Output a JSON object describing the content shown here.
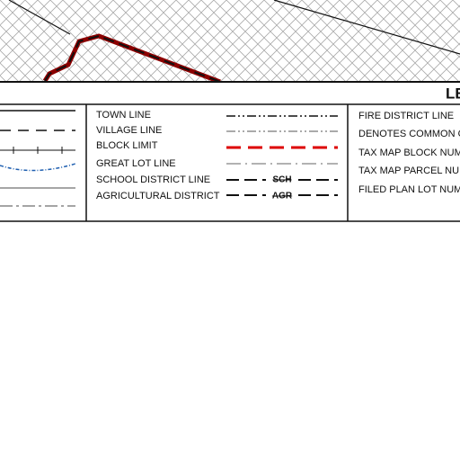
{
  "header": {
    "title": "LE"
  },
  "legend": {
    "middle": [
      {
        "label": "TOWN LINE"
      },
      {
        "label": "VILLAGE LINE"
      },
      {
        "label": "BLOCK LIMIT"
      },
      {
        "label": "GREAT LOT LINE"
      },
      {
        "label": "SCHOOL DISTRICT LINE",
        "symbol": "SCH"
      },
      {
        "label": "AGRICULTURAL DISTRICT",
        "symbol": "AGR"
      }
    ],
    "right": [
      {
        "label": "FIRE DISTRICT LINE"
      },
      {
        "label": "DENOTES COMMON O"
      },
      {
        "label": "TAX MAP BLOCK NUM"
      },
      {
        "label": "TAX MAP PARCEL NUM"
      },
      {
        "label": "FILED PLAN LOT NUM"
      }
    ]
  }
}
